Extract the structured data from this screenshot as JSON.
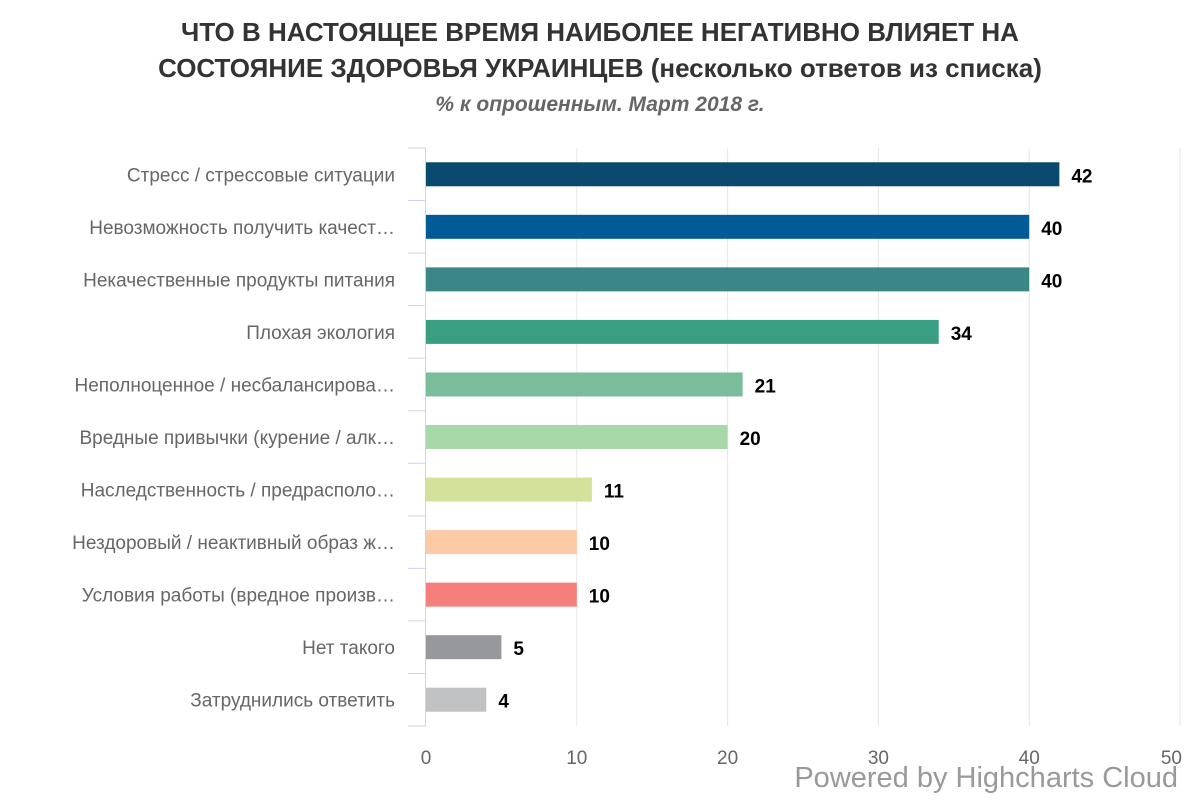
{
  "chart_data": {
    "type": "bar",
    "orientation": "horizontal",
    "title_line1": "ЧТО В НАСТОЯЩЕЕ ВРЕМЯ НАИБОЛЕЕ НЕГАТИВНО ВЛИЯЕТ  НА",
    "title_line2": "СОСТОЯНИЕ ЗДОРОВЬЯ УКРАИНЦЕВ (несколько ответов из списка)",
    "subtitle": "% к опрошенным. Март 2018 г.",
    "categories": [
      "Стресс / стрессовые ситуации",
      "Невозможность получить качест…",
      "Некачественные продукты питания",
      "Плохая экология",
      "Неполноценное / несбалансирова…",
      "Вредные привычки (курение / алк…",
      "Наследственность / предрасполо…",
      "Нездоровый / неактивный образ ж…",
      "Условия работы (вредное произв…",
      "Нет такого",
      "Затруднились ответить"
    ],
    "values": [
      42,
      40,
      40,
      34,
      21,
      20,
      11,
      10,
      10,
      5,
      4
    ],
    "colors": [
      "#0b4a6f",
      "#005b96",
      "#3b8686",
      "#3a9e82",
      "#79bd9a",
      "#a8d8a8",
      "#d2e29b",
      "#fccba6",
      "#f47f7b",
      "#97989d",
      "#c1c2c3"
    ],
    "xlim": [
      0,
      50
    ],
    "xticks": [
      0,
      10,
      20,
      30,
      40,
      50
    ],
    "grid": true,
    "data_labels": true
  },
  "credits": "Powered by Highcharts Cloud"
}
